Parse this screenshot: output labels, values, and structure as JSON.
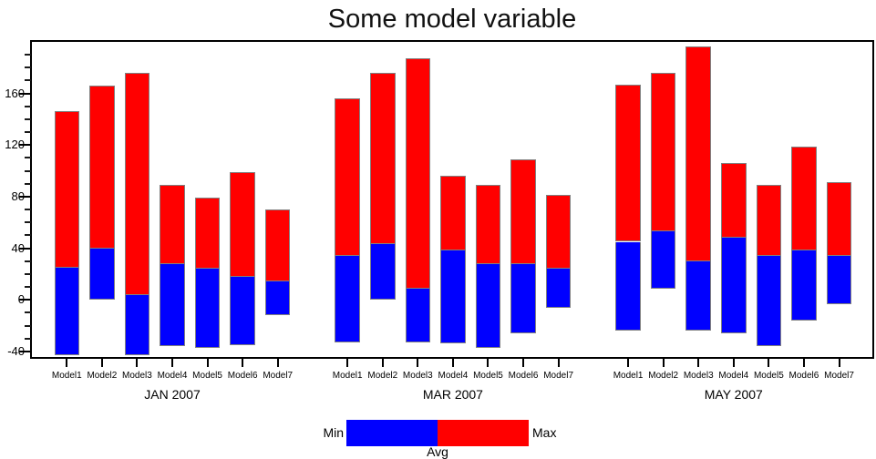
{
  "title": "Some model variable",
  "legend": {
    "min_label": "Min",
    "max_label": "Max",
    "avg_label": "Avg"
  },
  "colors": {
    "min_to_avg_fill": "#0000ff",
    "avg_to_max_fill": "#ff0000",
    "bar_outline": "#808080",
    "axis": "#000000",
    "background": "#ffffff"
  },
  "chart_data": {
    "type": "bar",
    "subtype": "range-bars-min-avg-max",
    "title": "Some model variable",
    "xlabel": "",
    "ylabel": "",
    "grid": false,
    "legend_position": "bottom-center",
    "ylim": [
      -45,
      201
    ],
    "yticks_major": [
      -40,
      0,
      40,
      80,
      120,
      160
    ],
    "ytick_minor_step": 10,
    "groups": [
      {
        "label": "JAN 2007",
        "models": [
          {
            "name": "Model1",
            "min": -43,
            "avg": 25,
            "max": 146
          },
          {
            "name": "Model2",
            "min": 0,
            "avg": 40,
            "max": 166
          },
          {
            "name": "Model3",
            "min": -43,
            "avg": 4,
            "max": 176
          },
          {
            "name": "Model4",
            "min": -36,
            "avg": 28,
            "max": 89
          },
          {
            "name": "Model5",
            "min": -37,
            "avg": 24,
            "max": 79
          },
          {
            "name": "Model6",
            "min": -35,
            "avg": 18,
            "max": 99
          },
          {
            "name": "Model7",
            "min": -12,
            "avg": 14,
            "max": 70
          }
        ]
      },
      {
        "label": "MAR 2007",
        "models": [
          {
            "name": "Model1",
            "min": -33,
            "avg": 34,
            "max": 156
          },
          {
            "name": "Model2",
            "min": 0,
            "avg": 43,
            "max": 176
          },
          {
            "name": "Model3",
            "min": -33,
            "avg": 9,
            "max": 187
          },
          {
            "name": "Model4",
            "min": -34,
            "avg": 38,
            "max": 96
          },
          {
            "name": "Model5",
            "min": -37,
            "avg": 28,
            "max": 89
          },
          {
            "name": "Model6",
            "min": -26,
            "avg": 28,
            "max": 109
          },
          {
            "name": "Model7",
            "min": -6,
            "avg": 24,
            "max": 81
          }
        ]
      },
      {
        "label": "MAY 2007",
        "models": [
          {
            "name": "Model1",
            "min": -24,
            "avg": 45,
            "max": 167
          },
          {
            "name": "Model2",
            "min": 9,
            "avg": 53,
            "max": 176
          },
          {
            "name": "Model3",
            "min": -24,
            "avg": 30,
            "max": 196
          },
          {
            "name": "Model4",
            "min": -26,
            "avg": 48,
            "max": 106
          },
          {
            "name": "Model5",
            "min": -36,
            "avg": 34,
            "max": 89
          },
          {
            "name": "Model6",
            "min": -16,
            "avg": 38,
            "max": 119
          },
          {
            "name": "Model7",
            "min": -3,
            "avg": 34,
            "max": 91
          }
        ]
      }
    ]
  }
}
